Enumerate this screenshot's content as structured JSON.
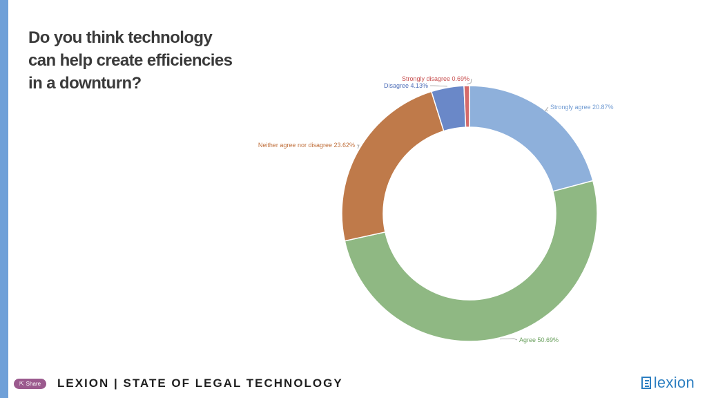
{
  "question": {
    "line1": "Do you think technology",
    "line2": "can help create efficiencies",
    "line3": "in a downturn?"
  },
  "footer": {
    "title": "LEXION | STATE OF LEGAL TECHNOLOGY",
    "share_label": "Share",
    "logo_text": "lexion"
  },
  "colors": {
    "left_bar": "#6fa0d8",
    "logo": "#2d7fc1",
    "share_button": "#9b5a8e"
  },
  "chart_data": {
    "type": "pie",
    "subtype": "donut",
    "slices": [
      {
        "label": "Strongly agree",
        "value": 20.87,
        "display": "Strongly agree 20.87%",
        "color": "#8eb0db",
        "label_color": "#6f9ad2"
      },
      {
        "label": "Agree",
        "value": 50.69,
        "display": "Agree 50.69%",
        "color": "#8fb883",
        "label_color": "#6aa05e"
      },
      {
        "label": "Neither agree nor disagree",
        "value": 23.62,
        "display": "Neither agree nor disagree 23.62%",
        "color": "#bf7a4a",
        "label_color": "#c0703c"
      },
      {
        "label": "Disagree",
        "value": 4.13,
        "display": "Disagree 4.13%",
        "color": "#6a88c8",
        "label_color": "#4f6fb8"
      },
      {
        "label": "Strongly disagree",
        "value": 0.69,
        "display": "Strongly disagree 0.69%",
        "color": "#d46a6a",
        "label_color": "#c85050"
      }
    ]
  }
}
